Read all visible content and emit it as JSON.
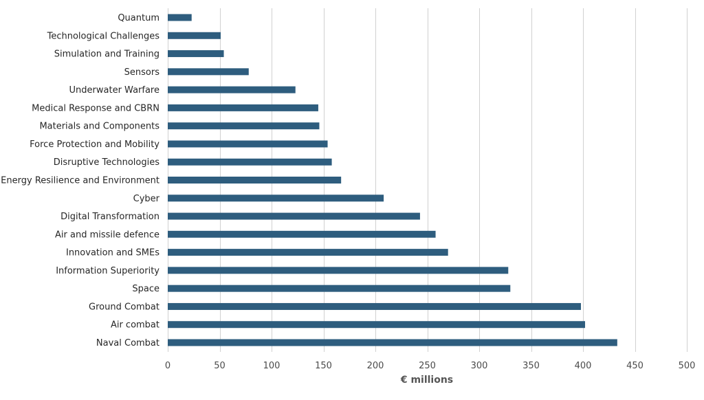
{
  "chart_data": {
    "type": "bar",
    "orientation": "horizontal",
    "title": "",
    "xlabel": "€ millions",
    "ylabel": "",
    "xlim": [
      0,
      500
    ],
    "xticks": [
      0,
      50,
      100,
      150,
      200,
      250,
      300,
      350,
      400,
      450,
      500
    ],
    "grid": true,
    "legend": "none",
    "colors": {
      "bar": "#2e5d7e",
      "grid": "#d0d0d0"
    },
    "categories": [
      "Quantum",
      "Technological Challenges",
      "Simulation and Training",
      "Sensors",
      "Underwater Warfare",
      "Medical Response and CBRN",
      "Materials and Components",
      "Force Protection and Mobility",
      "Disruptive Technologies",
      "Energy Resilience and Environment",
      "Cyber",
      "Digital Transformation",
      "Air and missile defence",
      "Innovation and SMEs",
      "Information Superiority",
      "Space",
      "Ground Combat",
      "Air combat",
      "Naval Combat"
    ],
    "values": [
      23,
      51,
      54,
      78,
      123,
      145,
      146,
      154,
      158,
      167,
      208,
      243,
      258,
      270,
      328,
      330,
      398,
      402,
      433
    ]
  }
}
